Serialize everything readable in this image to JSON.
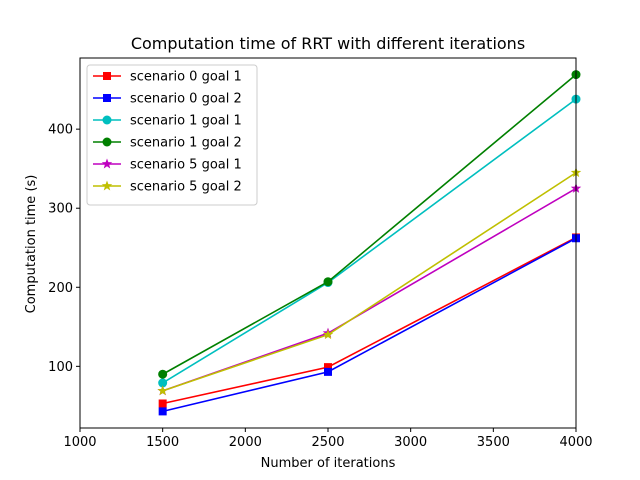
{
  "chart_data": {
    "type": "line",
    "title": "Computation time of RRT with different iterations",
    "xlabel": "Number of iterations",
    "ylabel": "Computation time (s)",
    "xlim": [
      1000,
      4000
    ],
    "ylim": [
      22,
      490
    ],
    "xticks": [
      1000,
      1500,
      2000,
      2500,
      3000,
      3500,
      4000
    ],
    "yticks": [
      100,
      200,
      300,
      400
    ],
    "x": [
      1500,
      2500,
      4000
    ],
    "legend_position": "upper-left",
    "grid": false,
    "series": [
      {
        "name": "scenario 0 goal 1",
        "values": [
          53,
          99,
          263
        ],
        "color": "#ff0000",
        "marker": "square"
      },
      {
        "name": "scenario 0 goal 2",
        "values": [
          43,
          93,
          262
        ],
        "color": "#0000ff",
        "marker": "square"
      },
      {
        "name": "scenario 1 goal 1",
        "values": [
          79,
          206,
          438
        ],
        "color": "#00bfbf",
        "marker": "circle"
      },
      {
        "name": "scenario 1 goal 2",
        "values": [
          90,
          207,
          469
        ],
        "color": "#008000",
        "marker": "circle"
      },
      {
        "name": "scenario 5 goal 1",
        "values": [
          69,
          142,
          325
        ],
        "color": "#bf00bf",
        "marker": "star"
      },
      {
        "name": "scenario 5 goal 2",
        "values": [
          69,
          140,
          345
        ],
        "color": "#bfbf00",
        "marker": "star"
      }
    ]
  }
}
